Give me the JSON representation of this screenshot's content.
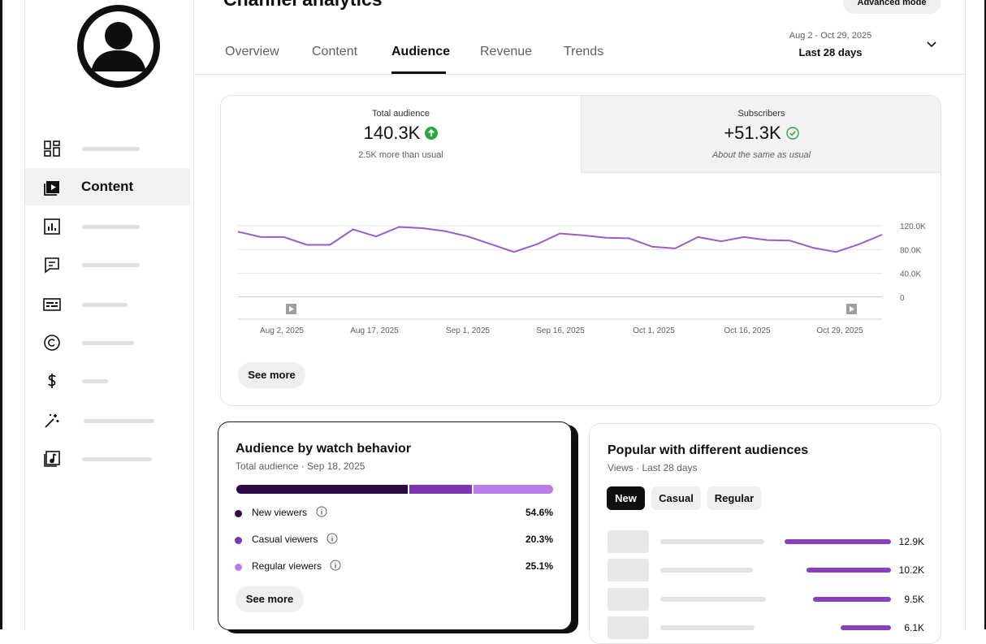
{
  "header": {
    "title": "Channel analytics",
    "advanced_mode": "Advanced mode",
    "tabs": [
      {
        "label": "Overview",
        "active": false
      },
      {
        "label": "Content",
        "active": false
      },
      {
        "label": "Audience",
        "active": true
      },
      {
        "label": "Revenue",
        "active": false
      },
      {
        "label": "Trends",
        "active": false
      }
    ],
    "date_range": "Aug 2 - Oct 29, 2025",
    "period": "Last 28 days"
  },
  "sidebar": {
    "items": [
      {
        "icon": "dashboard-icon",
        "label": ""
      },
      {
        "icon": "content-play-icon",
        "label": "Content",
        "active": true
      },
      {
        "icon": "analytics-icon",
        "label": ""
      },
      {
        "icon": "comments-icon",
        "label": ""
      },
      {
        "icon": "subtitles-icon",
        "label": ""
      },
      {
        "icon": "copyright-icon",
        "label": ""
      },
      {
        "icon": "dollar-icon",
        "label": ""
      },
      {
        "icon": "magic-wand-icon",
        "label": ""
      },
      {
        "icon": "audio-library-icon",
        "label": ""
      }
    ]
  },
  "metrics": {
    "total_audience": {
      "label": "Total audience",
      "value": "140.3K",
      "note": "2.5K more than usual",
      "icon": "arrow-up-circle-icon",
      "color": "#2ba640"
    },
    "subscribers": {
      "label": "Subscribers",
      "value": "+51.3K",
      "note": "About the same as usual",
      "icon": "check-circle-icon"
    }
  },
  "chart_data": {
    "type": "line",
    "x_ticks": [
      "Aug 2, 2025",
      "Aug 17, 2025",
      "Sep 1, 2025",
      "Sep 16, 2025",
      "Oct 1, 2025",
      "Oct 16, 2025",
      "Oct 29, 2025"
    ],
    "y_ticks": [
      "120.0K",
      "80.0K",
      "40.0K",
      "0"
    ],
    "ylim": [
      0,
      120000
    ],
    "grid": true,
    "color": "#9c5cc4",
    "series": [
      {
        "values": [
          110000,
          101000,
          101000,
          88000,
          88000,
          114000,
          102000,
          118000,
          116000,
          111000,
          102000,
          89000,
          76000,
          89000,
          107000,
          104000,
          100000,
          99000,
          85000,
          82000,
          101000,
          94000,
          101000,
          96000,
          95000,
          83000,
          76000,
          89000,
          105000
        ]
      }
    ]
  },
  "see_more": "See more",
  "watch_behavior": {
    "title": "Audience by watch behavior",
    "subtitle": "Total audience · Sep 18, 2025",
    "segments": [
      {
        "label": "New viewers",
        "pct": "54.6%",
        "value": 54.6,
        "color": "#2e0b47"
      },
      {
        "label": "Casual viewers",
        "pct": "20.3%",
        "value": 20.3,
        "color": "#7b35b5"
      },
      {
        "label": "Regular viewers",
        "pct": "25.1%",
        "value": 25.1,
        "color": "#bd7de6"
      }
    ]
  },
  "popular": {
    "title": "Popular with different audiences",
    "subtitle": "Views · Last 28 days",
    "filters": [
      {
        "label": "New",
        "active": true
      },
      {
        "label": "Casual",
        "active": false
      },
      {
        "label": "Regular",
        "active": false
      }
    ],
    "rows": [
      {
        "value_label": "12.9K",
        "value": 12900
      },
      {
        "value_label": "10.2K",
        "value": 10200
      },
      {
        "value_label": "9.5K",
        "value": 9500
      },
      {
        "value_label": "6.1K",
        "value": 6100
      }
    ]
  }
}
